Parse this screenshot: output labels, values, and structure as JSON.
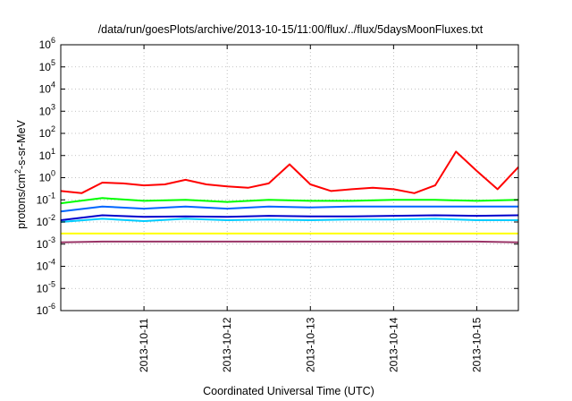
{
  "chart_data": {
    "type": "line",
    "title": "/data/run/goesPlots/archive/2013-10-15/11:00/flux/../flux/5daysMoonFluxes.txt",
    "xlabel": "Coordinated Universal Time (UTC)",
    "ylabel": "protons/cm²-s-sr-MeV",
    "yscale": "log",
    "ylim": [
      1e-06,
      1000000.0
    ],
    "y_ticks": [
      {
        "base": "10",
        "exp": "-6",
        "value": 1e-06
      },
      {
        "base": "10",
        "exp": "-5",
        "value": 1e-05
      },
      {
        "base": "10",
        "exp": "-4",
        "value": 0.0001
      },
      {
        "base": "10",
        "exp": "-3",
        "value": 0.001
      },
      {
        "base": "10",
        "exp": "-2",
        "value": 0.01
      },
      {
        "base": "10",
        "exp": "-1",
        "value": 0.1
      },
      {
        "base": "10",
        "exp": "0",
        "value": 1
      },
      {
        "base": "10",
        "exp": "1",
        "value": 10
      },
      {
        "base": "10",
        "exp": "2",
        "value": 100
      },
      {
        "base": "10",
        "exp": "3",
        "value": 1000
      },
      {
        "base": "10",
        "exp": "4",
        "value": 10000
      },
      {
        "base": "10",
        "exp": "5",
        "value": 100000
      },
      {
        "base": "10",
        "exp": "6",
        "value": 1000000
      }
    ],
    "xlim": [
      "2013-10-10T00:00",
      "2013-10-15T12:00"
    ],
    "x_ticks": [
      "2013-10-11",
      "2013-10-12",
      "2013-10-13",
      "2013-10-14",
      "2013-10-15"
    ],
    "grid": true,
    "series": [
      {
        "color": "#ff0000",
        "x": [
          "2013-10-10T00:00",
          "2013-10-10T06:00",
          "2013-10-10T12:00",
          "2013-10-10T18:00",
          "2013-10-11T00:00",
          "2013-10-11T06:00",
          "2013-10-11T12:00",
          "2013-10-11T18:00",
          "2013-10-12T00:00",
          "2013-10-12T06:00",
          "2013-10-12T12:00",
          "2013-10-12T18:00",
          "2013-10-13T00:00",
          "2013-10-13T06:00",
          "2013-10-13T12:00",
          "2013-10-13T18:00",
          "2013-10-14T00:00",
          "2013-10-14T06:00",
          "2013-10-14T12:00",
          "2013-10-14T18:00",
          "2013-10-15T00:00",
          "2013-10-15T06:00",
          "2013-10-15T12:00"
        ],
        "values": [
          0.25,
          0.2,
          0.6,
          0.55,
          0.45,
          0.5,
          0.8,
          0.5,
          0.4,
          0.35,
          0.55,
          4,
          0.5,
          0.25,
          0.3,
          0.35,
          0.3,
          0.2,
          0.45,
          15,
          2,
          0.3,
          3
        ]
      },
      {
        "color": "#00ff00",
        "x": [
          "2013-10-10T00:00",
          "2013-10-10T12:00",
          "2013-10-11T00:00",
          "2013-10-11T12:00",
          "2013-10-12T00:00",
          "2013-10-12T12:00",
          "2013-10-13T00:00",
          "2013-10-13T12:00",
          "2013-10-14T00:00",
          "2013-10-14T12:00",
          "2013-10-15T00:00",
          "2013-10-15T12:00"
        ],
        "values": [
          0.07,
          0.12,
          0.09,
          0.1,
          0.08,
          0.1,
          0.09,
          0.09,
          0.1,
          0.1,
          0.09,
          0.1
        ]
      },
      {
        "color": "#00ccff",
        "x": [
          "2013-10-10T00:00",
          "2013-10-10T12:00",
          "2013-10-11T00:00",
          "2013-10-11T12:00",
          "2013-10-12T00:00",
          "2013-10-12T12:00",
          "2013-10-13T00:00",
          "2013-10-13T12:00",
          "2013-10-14T00:00",
          "2013-10-14T12:00",
          "2013-10-15T00:00",
          "2013-10-15T12:00"
        ],
        "values": [
          0.01,
          0.014,
          0.011,
          0.014,
          0.012,
          0.013,
          0.012,
          0.013,
          0.013,
          0.014,
          0.012,
          0.012
        ]
      },
      {
        "color": "#0066ff",
        "x": [
          "2013-10-10T00:00",
          "2013-10-10T12:00",
          "2013-10-11T00:00",
          "2013-10-11T12:00",
          "2013-10-12T00:00",
          "2013-10-12T12:00",
          "2013-10-13T00:00",
          "2013-10-13T12:00",
          "2013-10-14T00:00",
          "2013-10-14T12:00",
          "2013-10-15T00:00",
          "2013-10-15T12:00"
        ],
        "values": [
          0.03,
          0.05,
          0.04,
          0.05,
          0.04,
          0.05,
          0.045,
          0.05,
          0.05,
          0.05,
          0.05,
          0.05
        ]
      },
      {
        "color": "#0000cc",
        "x": [
          "2013-10-10T00:00",
          "2013-10-10T12:00",
          "2013-10-11T00:00",
          "2013-10-11T12:00",
          "2013-10-12T00:00",
          "2013-10-12T12:00",
          "2013-10-13T00:00",
          "2013-10-13T12:00",
          "2013-10-14T00:00",
          "2013-10-14T12:00",
          "2013-10-15T00:00",
          "2013-10-15T12:00"
        ],
        "values": [
          0.012,
          0.02,
          0.017,
          0.018,
          0.017,
          0.019,
          0.018,
          0.018,
          0.019,
          0.02,
          0.019,
          0.02
        ]
      },
      {
        "color": "#ffff00",
        "x": [
          "2013-10-10T00:00",
          "2013-10-10T12:00",
          "2013-10-11T00:00",
          "2013-10-11T12:00",
          "2013-10-12T00:00",
          "2013-10-12T12:00",
          "2013-10-13T00:00",
          "2013-10-13T12:00",
          "2013-10-14T00:00",
          "2013-10-14T12:00",
          "2013-10-15T00:00",
          "2013-10-15T12:00"
        ],
        "values": [
          0.003,
          0.003,
          0.003,
          0.003,
          0.003,
          0.003,
          0.003,
          0.003,
          0.003,
          0.003,
          0.003,
          0.003
        ]
      },
      {
        "color": "#993366",
        "x": [
          "2013-10-10T00:00",
          "2013-10-10T12:00",
          "2013-10-11T00:00",
          "2013-10-11T12:00",
          "2013-10-12T00:00",
          "2013-10-12T12:00",
          "2013-10-13T00:00",
          "2013-10-13T12:00",
          "2013-10-14T00:00",
          "2013-10-14T12:00",
          "2013-10-15T00:00",
          "2013-10-15T12:00"
        ],
        "values": [
          0.0012,
          0.0013,
          0.0013,
          0.0013,
          0.0013,
          0.0013,
          0.0013,
          0.0013,
          0.0013,
          0.0013,
          0.0013,
          0.0012
        ]
      }
    ]
  }
}
